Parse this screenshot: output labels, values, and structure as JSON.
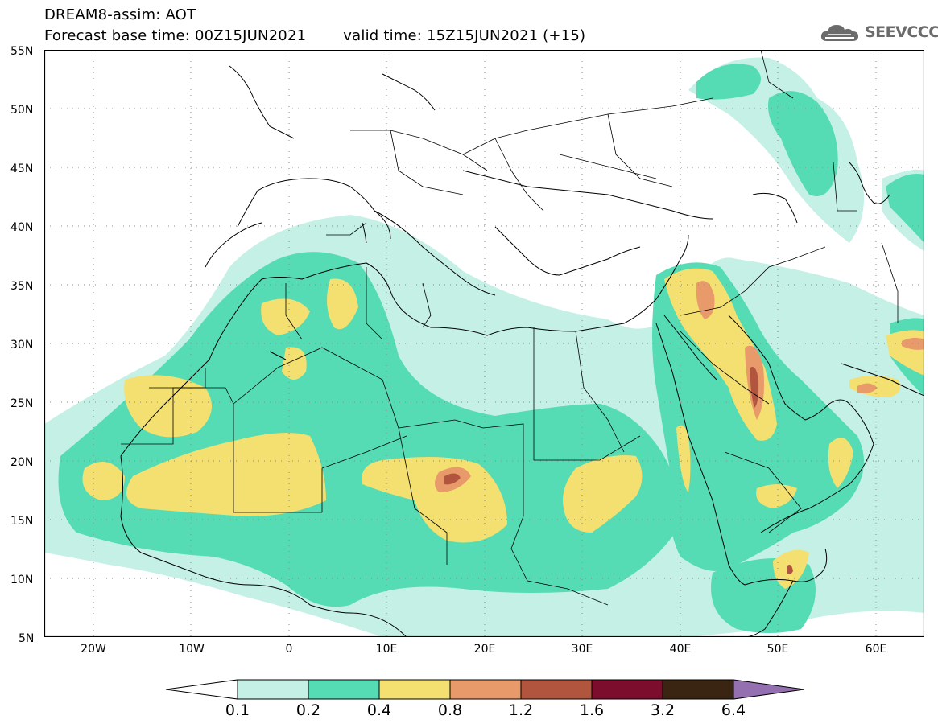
{
  "header": {
    "title_line1": "DREAM8-assim: AOT",
    "forecast_base": "Forecast base time: 00Z15JUN2021",
    "valid_time": "valid time: 15Z15JUN2021 (+15)"
  },
  "logo": {
    "text": "SEEVCCC",
    "icon": "cloud-icon",
    "color": "#6b6b6b"
  },
  "map": {
    "lon_range": [
      -25,
      65
    ],
    "lat_range": [
      5,
      55
    ],
    "lat_ticks": [
      "55N",
      "50N",
      "45N",
      "40N",
      "35N",
      "30N",
      "25N",
      "20N",
      "15N",
      "10N",
      "5N"
    ],
    "lon_ticks": [
      "20W",
      "10W",
      "0",
      "10E",
      "20E",
      "30E",
      "40E",
      "50E",
      "60E"
    ],
    "grid": "dotted"
  },
  "colorbar": {
    "labels": [
      "0.1",
      "0.2",
      "0.4",
      "0.8",
      "1.2",
      "1.6",
      "3.2",
      "6.4"
    ],
    "colors": [
      "#c4f0e6",
      "#55dcb5",
      "#f3e070",
      "#e99a6a",
      "#b2553f",
      "#7d0d2c",
      "#3a2412",
      "#9470b0"
    ]
  }
}
